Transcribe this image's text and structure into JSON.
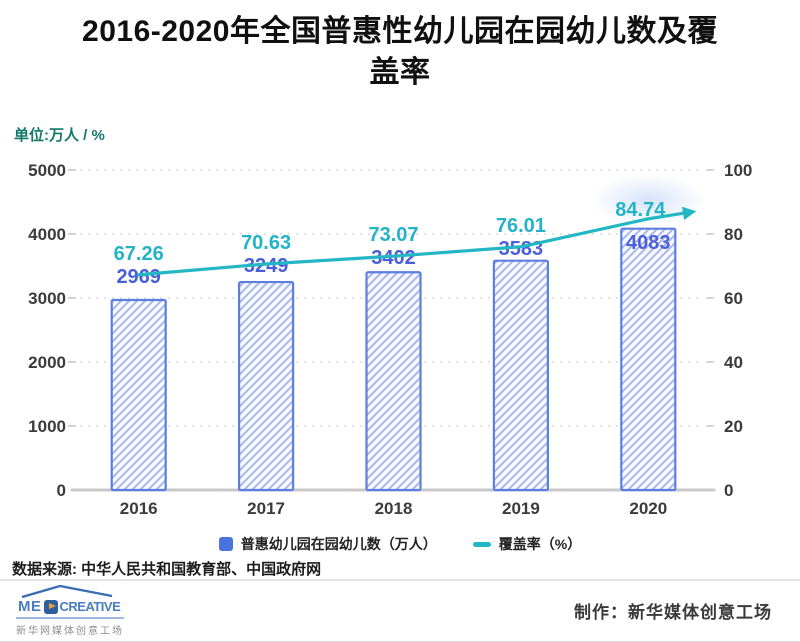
{
  "header": {
    "title": "2016-2020年全国普惠性幼儿园在园幼儿数及覆盖率",
    "unit_label": "单位:万人 / %"
  },
  "chart_data": {
    "type": "bar",
    "combo": "bar+line",
    "title": "2016-2020年全国普惠性幼儿园在园幼儿数及覆盖率",
    "categories": [
      "2016",
      "2017",
      "2018",
      "2019",
      "2020"
    ],
    "series": [
      {
        "name": "普惠幼儿园在园幼儿数（万人）",
        "type": "bar",
        "axis": "left",
        "values": [
          2969,
          3249,
          3402,
          3583,
          4083
        ],
        "color": "#4a73dd",
        "bar_stroke": "#5b7ee0",
        "hatch_color": "#adbaee",
        "label_color": "#4a5fd8"
      },
      {
        "name": "覆盖率（%）",
        "type": "line",
        "axis": "right",
        "values": [
          67.26,
          70.63,
          73.07,
          76.01,
          84.74
        ],
        "color": "#23b6c4",
        "label_color": "#23b3c6",
        "end_arrow": true
      }
    ],
    "left_axis": {
      "min": 0,
      "max": 5000,
      "ticks": [
        0,
        1000,
        2000,
        3000,
        4000,
        5000
      ]
    },
    "right_axis": {
      "min": 0,
      "max": 100,
      "ticks": [
        0,
        20,
        40,
        60,
        80,
        100
      ]
    },
    "grid": "dashed-horizontal",
    "legend_position": "bottom",
    "xlabel": "",
    "ylabel_left": "万人",
    "ylabel_right": "%"
  },
  "footer": {
    "source": "数据来源: 中华人民共和国教育部、中国政府网",
    "credit": "制作：新华媒体创意工场",
    "logo": {
      "wordmark_prefix": "ME",
      "wordmark_suffix": "CREATIVE",
      "caption": "新华网媒体创意工场"
    }
  },
  "colors": {
    "line_teal": "#23b6c4",
    "bar_blue": "#4a73dd",
    "bar_stroke": "#5b7ee0",
    "bar_hatch": "#adbaee",
    "bar_value_label": "#4a5fd8",
    "axis_text": "#3b3b3b",
    "gridline": "#d9d9d9",
    "baseline": "#c8c8c8",
    "unit_text": "#11786a"
  }
}
